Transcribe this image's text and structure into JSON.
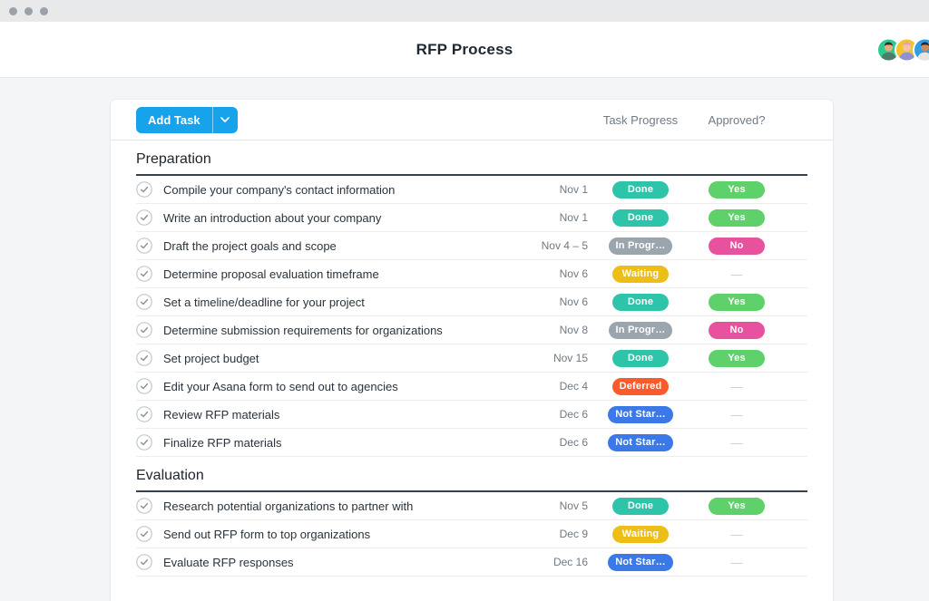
{
  "window": {
    "controls": [
      "window-dot",
      "window-dot",
      "window-dot"
    ]
  },
  "header": {
    "title": "RFP Process",
    "avatars": [
      {
        "name": "teammate-avatar-1",
        "bg": "#2fca91",
        "skin": "#e9a97e",
        "hair": "#35281e",
        "shirt": "#4b7f68"
      },
      {
        "name": "teammate-avatar-2",
        "bg": "#f2c230",
        "skin": "#f1c6a0",
        "hair": "#e79cc2",
        "shirt": "#8b93d6"
      },
      {
        "name": "teammate-avatar-3",
        "bg": "#2f9ee6",
        "skin": "#c98a5e",
        "hair": "#2b211c",
        "shirt": "#e8e4de"
      }
    ]
  },
  "toolbar": {
    "add_task_label": "Add Task",
    "columns": {
      "progress": "Task Progress",
      "approved": "Approved?"
    }
  },
  "table": {
    "badge_colors": {
      "Done": "#2ec4a9",
      "In Progr…": "#9aa5ae",
      "Waiting": "#ecbe17",
      "Deferred": "#fa5a2c",
      "Not Star…": "#3b78e8",
      "Yes": "#5ed16a",
      "No": "#e8519e"
    },
    "empty_value": "—",
    "sections": [
      {
        "title": "Preparation",
        "tasks": [
          {
            "name": "Compile your company's contact information",
            "date": "Nov 1",
            "status": "Done",
            "approved": "Yes"
          },
          {
            "name": "Write an introduction about your company",
            "date": "Nov 1",
            "status": "Done",
            "approved": "Yes"
          },
          {
            "name": "Draft the project goals and scope",
            "date": "Nov 4 – 5",
            "status": "In Progr…",
            "approved": "No"
          },
          {
            "name": "Determine proposal evaluation timeframe",
            "date": "Nov 6",
            "status": "Waiting",
            "approved": "—"
          },
          {
            "name": "Set a timeline/deadline for your project",
            "date": "Nov 6",
            "status": "Done",
            "approved": "Yes"
          },
          {
            "name": "Determine submission requirements for organizations",
            "date": "Nov 8",
            "status": "In Progr…",
            "approved": "No"
          },
          {
            "name": "Set project budget",
            "date": "Nov 15",
            "status": "Done",
            "approved": "Yes"
          },
          {
            "name": "Edit your Asana form to send out to agencies",
            "date": "Dec 4",
            "status": "Deferred",
            "approved": "—"
          },
          {
            "name": "Review RFP materials",
            "date": "Dec 6",
            "status": "Not Star…",
            "approved": "—"
          },
          {
            "name": "Finalize RFP materials",
            "date": "Dec 6",
            "status": "Not Star…",
            "approved": "—"
          }
        ]
      },
      {
        "title": "Evaluation",
        "tasks": [
          {
            "name": "Research potential organizations to partner with",
            "date": "Nov 5",
            "status": "Done",
            "approved": "Yes"
          },
          {
            "name": "Send out RFP form to top organizations",
            "date": "Dec 9",
            "status": "Waiting",
            "approved": "—"
          },
          {
            "name": "Evaluate RFP responses",
            "date": "Dec 16",
            "status": "Not Star…",
            "approved": "—"
          }
        ]
      }
    ]
  }
}
